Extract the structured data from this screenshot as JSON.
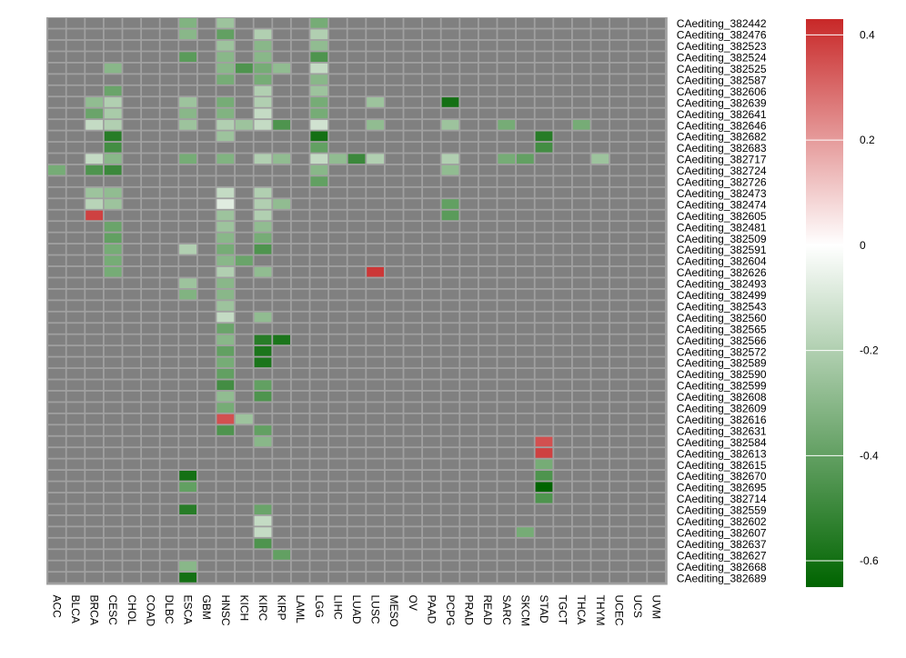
{
  "colors": {
    "missing": "#808080",
    "panel_bg": "#a0a0a0",
    "cell_border": "#a0a0a0",
    "low": "#006400",
    "mid": "#ffffff",
    "high": "#c82828"
  },
  "chart_data": {
    "type": "heatmap",
    "columns": [
      "ACC",
      "BLCA",
      "BRCA",
      "CESC",
      "CHOL",
      "COAD",
      "DLBC",
      "ESCA",
      "GBM",
      "HNSC",
      "KICH",
      "KIRC",
      "KIRP",
      "LAML",
      "LGG",
      "LIHC",
      "LUAD",
      "LUSC",
      "MESO",
      "OV",
      "PAAD",
      "PCPG",
      "PRAD",
      "READ",
      "SARC",
      "SKCM",
      "STAD",
      "TGCT",
      "THCA",
      "THYM",
      "UCEC",
      "UCS",
      "UVM"
    ],
    "rows": [
      "CAediting_382442",
      "CAediting_382476",
      "CAediting_382523",
      "CAediting_382524",
      "CAediting_382525",
      "CAediting_382587",
      "CAediting_382606",
      "CAediting_382639",
      "CAediting_382641",
      "CAediting_382646",
      "CAediting_382682",
      "CAediting_382683",
      "CAediting_382717",
      "CAediting_382724",
      "CAediting_382726",
      "CAediting_382473",
      "CAediting_382474",
      "CAediting_382605",
      "CAediting_382481",
      "CAediting_382509",
      "CAediting_382591",
      "CAediting_382604",
      "CAediting_382626",
      "CAediting_382493",
      "CAediting_382499",
      "CAediting_382543",
      "CAediting_382560",
      "CAediting_382565",
      "CAediting_382566",
      "CAediting_382572",
      "CAediting_382589",
      "CAediting_382590",
      "CAediting_382599",
      "CAediting_382608",
      "CAediting_382609",
      "CAediting_382616",
      "CAediting_382631",
      "CAediting_382584",
      "CAediting_382613",
      "CAediting_382615",
      "CAediting_382670",
      "CAediting_382695",
      "CAediting_382714",
      "CAediting_382559",
      "CAediting_382602",
      "CAediting_382607",
      "CAediting_382637",
      "CAediting_382627",
      "CAediting_382668",
      "CAediting_382689"
    ],
    "cells": [
      {
        "row": "CAediting_382442",
        "col": "ESCA",
        "value": -0.32
      },
      {
        "row": "CAediting_382442",
        "col": "HNSC",
        "value": -0.25
      },
      {
        "row": "CAediting_382442",
        "col": "LGG",
        "value": -0.35
      },
      {
        "row": "CAediting_382476",
        "col": "ESCA",
        "value": -0.3
      },
      {
        "row": "CAediting_382476",
        "col": "HNSC",
        "value": -0.4
      },
      {
        "row": "CAediting_382476",
        "col": "KIRC",
        "value": -0.2
      },
      {
        "row": "CAediting_382476",
        "col": "LGG",
        "value": -0.2
      },
      {
        "row": "CAediting_382523",
        "col": "HNSC",
        "value": -0.25
      },
      {
        "row": "CAediting_382523",
        "col": "KIRC",
        "value": -0.3
      },
      {
        "row": "CAediting_382523",
        "col": "LGG",
        "value": -0.28
      },
      {
        "row": "CAediting_382524",
        "col": "ESCA",
        "value": -0.42
      },
      {
        "row": "CAediting_382524",
        "col": "HNSC",
        "value": -0.3
      },
      {
        "row": "CAediting_382524",
        "col": "KIRC",
        "value": -0.3
      },
      {
        "row": "CAediting_382524",
        "col": "LGG",
        "value": -0.45
      },
      {
        "row": "CAediting_382525",
        "col": "CESC",
        "value": -0.3
      },
      {
        "row": "CAediting_382525",
        "col": "HNSC",
        "value": -0.3
      },
      {
        "row": "CAediting_382525",
        "col": "KICH",
        "value": -0.45
      },
      {
        "row": "CAediting_382525",
        "col": "KIRC",
        "value": -0.35
      },
      {
        "row": "CAediting_382525",
        "col": "KIRP",
        "value": -0.28
      },
      {
        "row": "CAediting_382525",
        "col": "LGG",
        "value": -0.15
      },
      {
        "row": "CAediting_382587",
        "col": "HNSC",
        "value": -0.35
      },
      {
        "row": "CAediting_382587",
        "col": "KIRC",
        "value": -0.35
      },
      {
        "row": "CAediting_382587",
        "col": "LGG",
        "value": -0.3
      },
      {
        "row": "CAediting_382606",
        "col": "CESC",
        "value": -0.38
      },
      {
        "row": "CAediting_382606",
        "col": "KIRC",
        "value": -0.2
      },
      {
        "row": "CAediting_382606",
        "col": "LGG",
        "value": -0.25
      },
      {
        "row": "CAediting_382639",
        "col": "BRCA",
        "value": -0.28
      },
      {
        "row": "CAediting_382639",
        "col": "CESC",
        "value": -0.2
      },
      {
        "row": "CAediting_382639",
        "col": "ESCA",
        "value": -0.25
      },
      {
        "row": "CAediting_382639",
        "col": "HNSC",
        "value": -0.35
      },
      {
        "row": "CAediting_382639",
        "col": "KIRC",
        "value": -0.2
      },
      {
        "row": "CAediting_382639",
        "col": "LGG",
        "value": -0.35
      },
      {
        "row": "CAediting_382639",
        "col": "LUSC",
        "value": -0.25
      },
      {
        "row": "CAediting_382639",
        "col": "PCPG",
        "value": -0.6
      },
      {
        "row": "CAediting_382641",
        "col": "BRCA",
        "value": -0.38
      },
      {
        "row": "CAediting_382641",
        "col": "CESC",
        "value": -0.22
      },
      {
        "row": "CAediting_382641",
        "col": "ESCA",
        "value": -0.3
      },
      {
        "row": "CAediting_382641",
        "col": "HNSC",
        "value": -0.32
      },
      {
        "row": "CAediting_382641",
        "col": "KIRC",
        "value": -0.15
      },
      {
        "row": "CAediting_382641",
        "col": "LGG",
        "value": -0.35
      },
      {
        "row": "CAediting_382646",
        "col": "BRCA",
        "value": -0.15
      },
      {
        "row": "CAediting_382646",
        "col": "CESC",
        "value": -0.2
      },
      {
        "row": "CAediting_382646",
        "col": "ESCA",
        "value": -0.25
      },
      {
        "row": "CAediting_382646",
        "col": "HNSC",
        "value": -0.2
      },
      {
        "row": "CAediting_382646",
        "col": "KICH",
        "value": -0.25
      },
      {
        "row": "CAediting_382646",
        "col": "KIRC",
        "value": -0.15
      },
      {
        "row": "CAediting_382646",
        "col": "KIRP",
        "value": -0.45
      },
      {
        "row": "CAediting_382646",
        "col": "LGG",
        "value": -0.12
      },
      {
        "row": "CAediting_382646",
        "col": "LUSC",
        "value": -0.28
      },
      {
        "row": "CAediting_382646",
        "col": "PCPG",
        "value": -0.25
      },
      {
        "row": "CAediting_382646",
        "col": "SARC",
        "value": -0.35
      },
      {
        "row": "CAediting_382646",
        "col": "THCA",
        "value": -0.35
      },
      {
        "row": "CAediting_382682",
        "col": "CESC",
        "value": -0.55
      },
      {
        "row": "CAediting_382682",
        "col": "HNSC",
        "value": -0.25
      },
      {
        "row": "CAediting_382682",
        "col": "LGG",
        "value": -0.6
      },
      {
        "row": "CAediting_382682",
        "col": "STAD",
        "value": -0.55
      },
      {
        "row": "CAediting_382683",
        "col": "CESC",
        "value": -0.48
      },
      {
        "row": "CAediting_382683",
        "col": "LGG",
        "value": -0.4
      },
      {
        "row": "CAediting_382683",
        "col": "STAD",
        "value": -0.48
      },
      {
        "row": "CAediting_382717",
        "col": "BRCA",
        "value": -0.15
      },
      {
        "row": "CAediting_382717",
        "col": "CESC",
        "value": -0.3
      },
      {
        "row": "CAediting_382717",
        "col": "ESCA",
        "value": -0.35
      },
      {
        "row": "CAediting_382717",
        "col": "HNSC",
        "value": -0.32
      },
      {
        "row": "CAediting_382717",
        "col": "KIRC",
        "value": -0.2
      },
      {
        "row": "CAediting_382717",
        "col": "KIRP",
        "value": -0.28
      },
      {
        "row": "CAediting_382717",
        "col": "LGG",
        "value": -0.15
      },
      {
        "row": "CAediting_382717",
        "col": "LIHC",
        "value": -0.28
      },
      {
        "row": "CAediting_382717",
        "col": "LUAD",
        "value": -0.5
      },
      {
        "row": "CAediting_382717",
        "col": "LUSC",
        "value": -0.2
      },
      {
        "row": "CAediting_382717",
        "col": "PCPG",
        "value": -0.2
      },
      {
        "row": "CAediting_382717",
        "col": "SARC",
        "value": -0.35
      },
      {
        "row": "CAediting_382717",
        "col": "SKCM",
        "value": -0.4
      },
      {
        "row": "CAediting_382717",
        "col": "THYM",
        "value": -0.25
      },
      {
        "row": "CAediting_382724",
        "col": "ACC",
        "value": -0.35
      },
      {
        "row": "CAediting_382724",
        "col": "BRCA",
        "value": -0.45
      },
      {
        "row": "CAediting_382724",
        "col": "CESC",
        "value": -0.5
      },
      {
        "row": "CAediting_382724",
        "col": "LGG",
        "value": -0.3
      },
      {
        "row": "CAediting_382724",
        "col": "PCPG",
        "value": -0.28
      },
      {
        "row": "CAediting_382726",
        "col": "LGG",
        "value": -0.4
      },
      {
        "row": "CAediting_382473",
        "col": "BRCA",
        "value": -0.25
      },
      {
        "row": "CAediting_382473",
        "col": "CESC",
        "value": -0.28
      },
      {
        "row": "CAediting_382473",
        "col": "HNSC",
        "value": -0.15
      },
      {
        "row": "CAediting_382473",
        "col": "KIRC",
        "value": -0.2
      },
      {
        "row": "CAediting_382474",
        "col": "BRCA",
        "value": -0.18
      },
      {
        "row": "CAediting_382474",
        "col": "CESC",
        "value": -0.25
      },
      {
        "row": "CAediting_382474",
        "col": "HNSC",
        "value": -0.08
      },
      {
        "row": "CAediting_382474",
        "col": "KIRC",
        "value": -0.2
      },
      {
        "row": "CAediting_382474",
        "col": "KIRP",
        "value": -0.28
      },
      {
        "row": "CAediting_382474",
        "col": "PCPG",
        "value": -0.4
      },
      {
        "row": "CAediting_382605",
        "col": "BRCA",
        "value": 0.38
      },
      {
        "row": "CAediting_382605",
        "col": "HNSC",
        "value": -0.25
      },
      {
        "row": "CAediting_382605",
        "col": "KIRC",
        "value": -0.2
      },
      {
        "row": "CAediting_382605",
        "col": "PCPG",
        "value": -0.42
      },
      {
        "row": "CAediting_382481",
        "col": "CESC",
        "value": -0.38
      },
      {
        "row": "CAediting_382481",
        "col": "HNSC",
        "value": -0.25
      },
      {
        "row": "CAediting_382481",
        "col": "KIRC",
        "value": -0.28
      },
      {
        "row": "CAediting_382509",
        "col": "CESC",
        "value": -0.4
      },
      {
        "row": "CAediting_382509",
        "col": "HNSC",
        "value": -0.3
      },
      {
        "row": "CAediting_382509",
        "col": "KIRC",
        "value": -0.35
      },
      {
        "row": "CAediting_382591",
        "col": "CESC",
        "value": -0.35
      },
      {
        "row": "CAediting_382591",
        "col": "ESCA",
        "value": -0.2
      },
      {
        "row": "CAediting_382591",
        "col": "HNSC",
        "value": -0.35
      },
      {
        "row": "CAediting_382591",
        "col": "KIRC",
        "value": -0.45
      },
      {
        "row": "CAediting_382604",
        "col": "CESC",
        "value": -0.35
      },
      {
        "row": "CAediting_382604",
        "col": "HNSC",
        "value": -0.3
      },
      {
        "row": "CAediting_382604",
        "col": "KICH",
        "value": -0.38
      },
      {
        "row": "CAediting_382626",
        "col": "CESC",
        "value": -0.35
      },
      {
        "row": "CAediting_382626",
        "col": "HNSC",
        "value": -0.2
      },
      {
        "row": "CAediting_382626",
        "col": "KIRC",
        "value": -0.28
      },
      {
        "row": "CAediting_382626",
        "col": "LUSC",
        "value": 0.4
      },
      {
        "row": "CAediting_382493",
        "col": "ESCA",
        "value": -0.25
      },
      {
        "row": "CAediting_382493",
        "col": "HNSC",
        "value": -0.3
      },
      {
        "row": "CAediting_382499",
        "col": "ESCA",
        "value": -0.32
      },
      {
        "row": "CAediting_382499",
        "col": "HNSC",
        "value": -0.3
      },
      {
        "row": "CAediting_382543",
        "col": "HNSC",
        "value": -0.25
      },
      {
        "row": "CAediting_382560",
        "col": "HNSC",
        "value": -0.15
      },
      {
        "row": "CAediting_382560",
        "col": "KIRC",
        "value": -0.28
      },
      {
        "row": "CAediting_382565",
        "col": "HNSC",
        "value": -0.38
      },
      {
        "row": "CAediting_382566",
        "col": "HNSC",
        "value": -0.3
      },
      {
        "row": "CAediting_382566",
        "col": "KIRC",
        "value": -0.55
      },
      {
        "row": "CAediting_382566",
        "col": "KIRP",
        "value": -0.58
      },
      {
        "row": "CAediting_382572",
        "col": "HNSC",
        "value": -0.4
      },
      {
        "row": "CAediting_382572",
        "col": "KIRC",
        "value": -0.58
      },
      {
        "row": "CAediting_382589",
        "col": "HNSC",
        "value": -0.35
      },
      {
        "row": "CAediting_382589",
        "col": "KIRC",
        "value": -0.58
      },
      {
        "row": "CAediting_382590",
        "col": "HNSC",
        "value": -0.4
      },
      {
        "row": "CAediting_382599",
        "col": "HNSC",
        "value": -0.48
      },
      {
        "row": "CAediting_382599",
        "col": "KIRC",
        "value": -0.4
      },
      {
        "row": "CAediting_382608",
        "col": "HNSC",
        "value": -0.28
      },
      {
        "row": "CAediting_382608",
        "col": "KIRC",
        "value": -0.45
      },
      {
        "row": "CAediting_382609",
        "col": "HNSC",
        "value": -0.35
      },
      {
        "row": "CAediting_382616",
        "col": "HNSC",
        "value": 0.35
      },
      {
        "row": "CAediting_382616",
        "col": "KICH",
        "value": -0.25
      },
      {
        "row": "CAediting_382631",
        "col": "HNSC",
        "value": -0.45
      },
      {
        "row": "CAediting_382631",
        "col": "KIRC",
        "value": -0.4
      },
      {
        "row": "CAediting_382584",
        "col": "KIRC",
        "value": -0.3
      },
      {
        "row": "CAediting_382584",
        "col": "STAD",
        "value": 0.35
      },
      {
        "row": "CAediting_382613",
        "col": "STAD",
        "value": 0.38
      },
      {
        "row": "CAediting_382615",
        "col": "STAD",
        "value": -0.35
      },
      {
        "row": "CAediting_382670",
        "col": "ESCA",
        "value": -0.6
      },
      {
        "row": "CAediting_382670",
        "col": "STAD",
        "value": -0.45
      },
      {
        "row": "CAediting_382695",
        "col": "ESCA",
        "value": -0.4
      },
      {
        "row": "CAediting_382695",
        "col": "STAD",
        "value": -0.65
      },
      {
        "row": "CAediting_382714",
        "col": "STAD",
        "value": -0.45
      },
      {
        "row": "CAediting_382559",
        "col": "ESCA",
        "value": -0.55
      },
      {
        "row": "CAediting_382559",
        "col": "KIRC",
        "value": -0.38
      },
      {
        "row": "CAediting_382602",
        "col": "KIRC",
        "value": -0.15
      },
      {
        "row": "CAediting_382607",
        "col": "KIRC",
        "value": -0.15
      },
      {
        "row": "CAediting_382607",
        "col": "SKCM",
        "value": -0.35
      },
      {
        "row": "CAediting_382637",
        "col": "KIRC",
        "value": -0.45
      },
      {
        "row": "CAediting_382627",
        "col": "KIRP",
        "value": -0.4
      },
      {
        "row": "CAediting_382668",
        "col": "ESCA",
        "value": -0.3
      },
      {
        "row": "CAediting_382689",
        "col": "ESCA",
        "value": -0.6
      }
    ],
    "scale": {
      "min": -0.65,
      "max": 0.43,
      "midpoint": 0
    },
    "legend": {
      "position": "right",
      "ticks": [
        "0.4",
        "0.2",
        "0",
        "-0.2",
        "-0.4",
        "-0.6"
      ],
      "tick_values": [
        0.4,
        0.2,
        0,
        -0.2,
        -0.4,
        -0.6
      ]
    },
    "title": "",
    "xlabel": "",
    "ylabel": ""
  }
}
